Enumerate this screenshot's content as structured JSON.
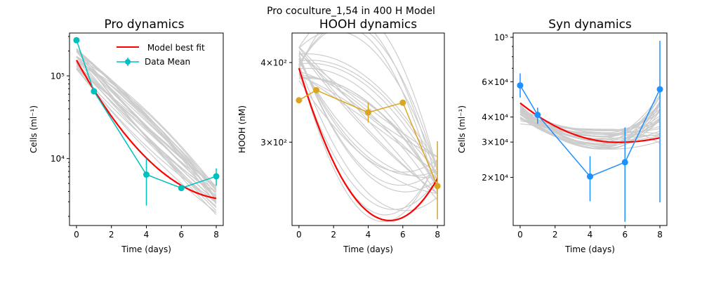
{
  "figure": {
    "suptitle": "Pro coculture_1,54 in 400 H Model"
  },
  "colors": {
    "model": "#ff0000",
    "ensemble": "#cccccc",
    "pro": "#00bfbf",
    "hooh": "#daa520",
    "syn": "#1e90ff"
  },
  "chart_data": [
    {
      "type": "line",
      "title": "Pro dynamics",
      "xlabel": "Time (days)",
      "ylabel": "Cells (ml⁻¹)",
      "xlim": [
        -0.4,
        8.4
      ],
      "ylim": [
        1550,
        330000
      ],
      "yscale": "log",
      "xticks": [
        0,
        2,
        4,
        6,
        8
      ],
      "yticks": [
        {
          "value": 10000,
          "label": "10⁴"
        },
        {
          "value": 100000,
          "label": "10⁵"
        }
      ],
      "legend": {
        "position": "upper-right",
        "model_label": " Model best fit",
        "data_label": "Data Mean"
      },
      "model": {
        "y0": 155000,
        "y8": 3300,
        "curve": 0.05
      },
      "ensemble": {
        "count": 30,
        "y0_range": [
          120000,
          215000
        ],
        "y8_range": [
          2100,
          4600
        ]
      },
      "data": {
        "x": [
          0,
          1,
          4,
          6,
          8
        ],
        "y": [
          270000,
          65000,
          6400,
          4400,
          6100
        ],
        "yerr_low": [
          270000,
          65000,
          2700,
          4400,
          4700
        ],
        "yerr_high": [
          270000,
          65000,
          10000,
          4400,
          7600
        ]
      }
    },
    {
      "type": "line",
      "title": "HOOH dynamics",
      "xlabel": "Time (days)",
      "ylabel": "HOOH (nM)",
      "xlim": [
        -0.4,
        8.4
      ],
      "ylim": [
        222,
        445
      ],
      "yscale": "log",
      "xticks": [
        0,
        2,
        4,
        6,
        8
      ],
      "yticks": [
        {
          "value": 300,
          "label": "3×10²"
        },
        {
          "value": 400,
          "label": "4×10²"
        }
      ],
      "model": {
        "y0": 392,
        "y8": 263,
        "curve": 0.02
      },
      "ensemble": {
        "count": 30,
        "y0_range": [
          375,
          425
        ],
        "y8_range": [
          240,
          285
        ]
      },
      "data": {
        "x": [
          0,
          1,
          4,
          6,
          8
        ],
        "y": [
          349,
          362,
          334,
          346,
          256
        ],
        "yerr_low": [
          349,
          362,
          322,
          346,
          227
        ],
        "yerr_high": [
          349,
          362,
          346,
          346,
          301
        ]
      }
    },
    {
      "type": "line",
      "title": "Syn dynamics",
      "xlabel": "Time (days)",
      "ylabel": "Cells (ml⁻¹)",
      "xlim": [
        -0.4,
        8.4
      ],
      "ylim": [
        11500,
        105000
      ],
      "yscale": "log",
      "xticks": [
        0,
        2,
        4,
        6,
        8
      ],
      "yticks": [
        {
          "value": 20000,
          "label": "2×10⁴"
        },
        {
          "value": 30000,
          "label": "3×10⁴"
        },
        {
          "value": 40000,
          "label": "4×10⁴"
        },
        {
          "value": 60000,
          "label": "6×10⁴"
        },
        {
          "value": 100000,
          "label": "10⁵"
        }
      ],
      "model": {
        "type": "quadratic",
        "y0": 47000,
        "ymin": 29900,
        "xmin": 5.6,
        "y8": 31500
      },
      "ensemble": {
        "count": 30,
        "y0_range": [
          37000,
          46000
        ],
        "ymin_range": [
          27500,
          35000
        ],
        "xmin_range": [
          4.3,
          5.3
        ],
        "y8_range": [
          29000,
          53000
        ]
      },
      "data": {
        "x": [
          0,
          1,
          4,
          6,
          8
        ],
        "y": [
          57500,
          41000,
          20200,
          23800,
          55000
        ],
        "yerr_low": [
          50000,
          37000,
          15200,
          12000,
          15000
        ],
        "yerr_high": [
          66000,
          44500,
          25500,
          35500,
          96000
        ]
      }
    }
  ]
}
